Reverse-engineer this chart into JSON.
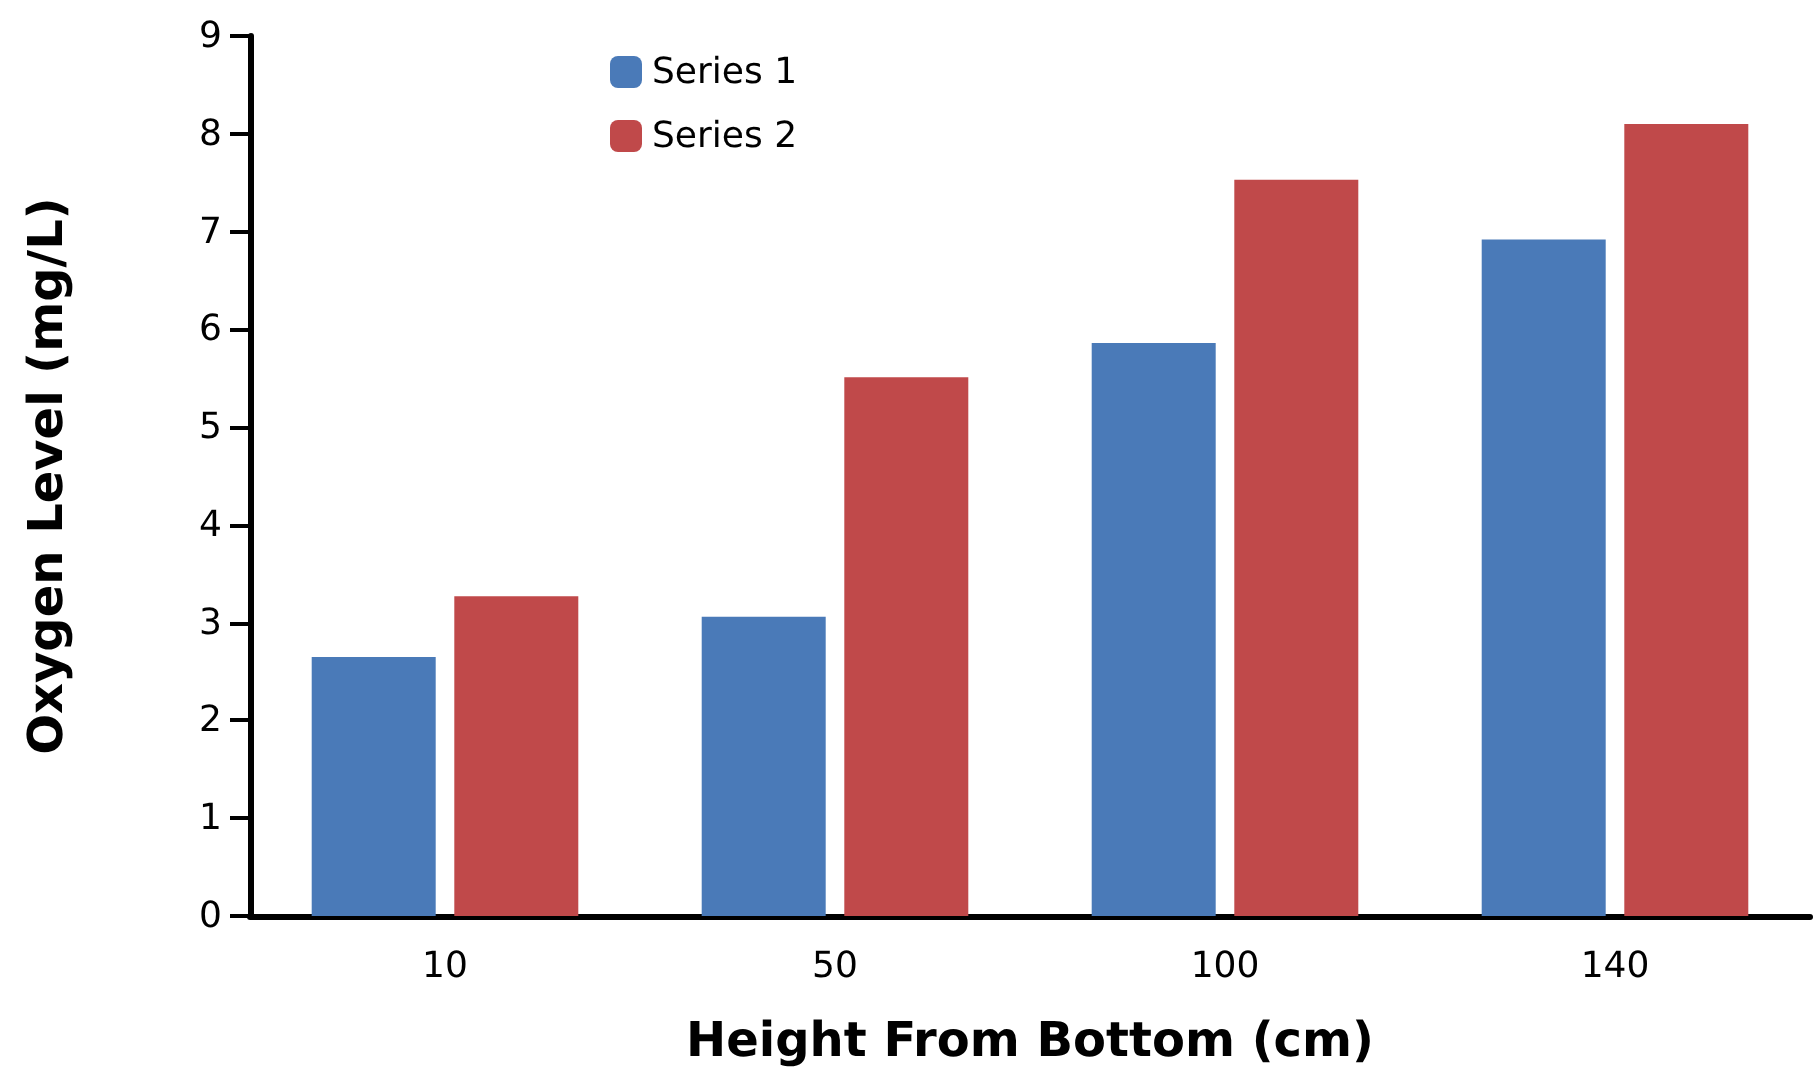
{
  "chart_data": {
    "type": "bar",
    "xlabel": "Height From Bottom (cm)",
    "ylabel": "Oxygen Level (mg/L)",
    "categories": [
      "10",
      "50",
      "100",
      "140"
    ],
    "series": [
      {
        "name": "Series 1",
        "color": "#4a7ab8",
        "values": [
          2.65,
          3.06,
          5.86,
          6.92
        ]
      },
      {
        "name": "Series 2",
        "color": "#c0494a",
        "values": [
          3.27,
          5.51,
          7.53,
          8.1
        ]
      }
    ],
    "ylim": [
      0,
      9
    ],
    "yticks": [
      0,
      1,
      2,
      3,
      4,
      5,
      6,
      7,
      8,
      9
    ],
    "grid": false,
    "legend": "top left"
  }
}
